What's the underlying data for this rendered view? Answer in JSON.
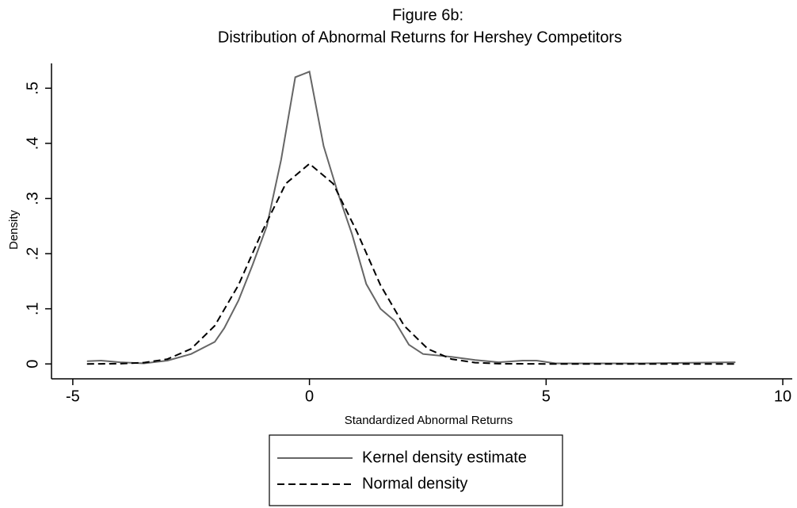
{
  "chart_data": {
    "type": "line",
    "title": [
      "Figure 6b:",
      "Distribution of Abnormal Returns for Hershey Competitors"
    ],
    "x_label": "Standardized Abnormal Returns",
    "y_label": "Density",
    "xlim": [
      -5.45,
      10.2
    ],
    "ylim": [
      -0.027,
      0.545
    ],
    "xticks": [
      -5,
      0,
      5,
      10
    ],
    "yticks": [
      0,
      {
        "value": 0.1,
        "label": ".1"
      },
      {
        "value": 0.2,
        "label": ".2"
      },
      {
        "value": 0.3,
        "label": ".3"
      },
      {
        "value": 0.4,
        "label": ".4"
      },
      {
        "value": 0.5,
        "label": ".5"
      }
    ],
    "series": [
      {
        "name": "Kernel density estimate",
        "color": "#666666",
        "linestyle": "solid",
        "x": [
          -4.7,
          -4.4,
          -4,
          -3.5,
          -3,
          -2.5,
          -2,
          -1.8,
          -1.5,
          -1.2,
          -0.9,
          -0.6,
          -0.3,
          0,
          0.3,
          0.6,
          0.9,
          1.2,
          1.5,
          1.8,
          2.1,
          2.4,
          3,
          3.5,
          4,
          4.5,
          4.8,
          5.2,
          6,
          7,
          8,
          9
        ],
        "values": [
          0.005,
          0.006,
          0.003,
          0.001,
          0.006,
          0.018,
          0.04,
          0.065,
          0.115,
          0.18,
          0.25,
          0.37,
          0.52,
          0.53,
          0.395,
          0.31,
          0.235,
          0.145,
          0.1,
          0.078,
          0.035,
          0.018,
          0.013,
          0.007,
          0.003,
          0.006,
          0.006,
          0.001,
          0.001,
          0.001,
          0.002,
          0.003
        ]
      },
      {
        "name": "Normal density",
        "color": "#000000",
        "linestyle": "dashed",
        "x": [
          -4.7,
          -4,
          -3.5,
          -3,
          -2.5,
          -2,
          -1.5,
          -1,
          -0.5,
          0,
          0.5,
          1,
          1.5,
          2,
          2.5,
          3,
          3.5,
          4,
          5,
          6,
          7,
          8,
          9
        ],
        "values": [
          0,
          0.0005,
          0.0023,
          0.0088,
          0.0273,
          0.0693,
          0.143,
          0.24,
          0.327,
          0.363,
          0.327,
          0.24,
          0.143,
          0.0693,
          0.0273,
          0.0088,
          0.0023,
          0.0005,
          0,
          0,
          0,
          0,
          0
        ]
      }
    ]
  }
}
